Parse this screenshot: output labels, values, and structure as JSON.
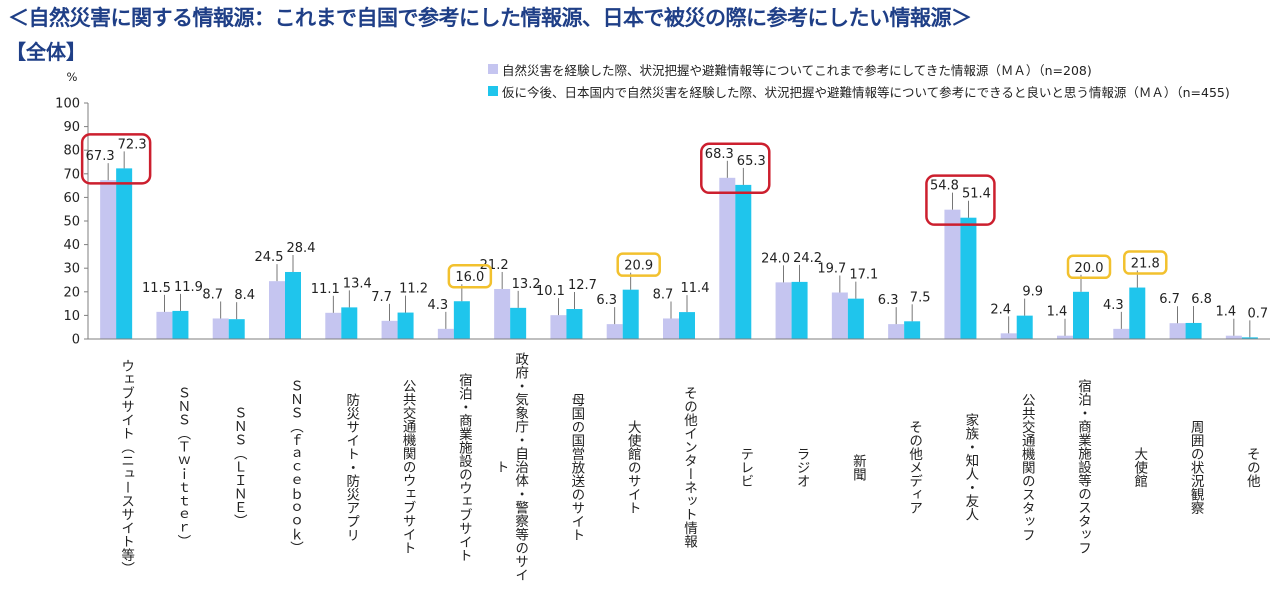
{
  "title": "＜自然災害に関する情報源：これまで自国で参考にした情報源、日本で被災の際に参考にしたい情報源＞",
  "subtitle": "【全体】",
  "chart_data": {
    "type": "bar",
    "y_unit": "%",
    "ylim": [
      0,
      100
    ],
    "yticks": [
      0,
      10,
      20,
      30,
      40,
      50,
      60,
      70,
      80,
      90,
      100
    ],
    "legend_position": "top-right",
    "categories": [
      "ウェブサイト（ニュースサイト等）",
      "ＳＮＳ（Ｔｗｉｔｔｅｒ）",
      "ＳＮＳ（ＬＩＮＥ）",
      "ＳＮＳ（ｆａｃｅｂｏｏｋ）",
      "防災サイト・防災アプリ",
      "公共交通機関のウェブサイト",
      "宿泊・商業施設のウェブサイト",
      "政府・気象庁・自治体・警察等のサイト",
      "母国の国営放送のサイト",
      "大使館のサイト",
      "その他インターネット情報",
      "テレビ",
      "ラジオ",
      "新聞",
      "その他メディア",
      "家族・知人・友人",
      "公共交通機関のスタッフ",
      "宿泊・商業施設等のスタッフ",
      "大使館",
      "周囲の状況観察",
      "その他"
    ],
    "series": [
      {
        "name": "自然災害を経験した際、状況把握や避難情報等についてこれまで参考にしてきた情報源（ＭＡ）（n=208)",
        "color": "#c5c5f0",
        "values": [
          67.3,
          11.5,
          8.7,
          24.5,
          11.1,
          7.7,
          4.3,
          21.2,
          10.1,
          6.3,
          8.7,
          68.3,
          24.0,
          19.7,
          6.3,
          54.8,
          2.4,
          1.4,
          4.3,
          6.7,
          1.4
        ],
        "labels": [
          "67.3",
          "11.5",
          "8.7",
          "24.5",
          "11.1",
          "7.7",
          "4.3",
          "21.2",
          "10.1",
          "6.3",
          "8.7",
          "68.3",
          "24.0",
          "19.7",
          "6.3",
          "54.8",
          "2.4",
          "1.4",
          "4.3",
          "6.7",
          "1.4"
        ]
      },
      {
        "name": "仮に今後、日本国内で自然災害を経験した際、状況把握や避難情報等について参考にできると良いと思う情報源（ＭＡ）（n=455)",
        "color": "#1fc5ec",
        "values": [
          72.3,
          11.9,
          8.4,
          28.4,
          13.4,
          11.2,
          16.0,
          13.2,
          12.7,
          20.9,
          11.4,
          65.3,
          24.2,
          17.1,
          7.5,
          51.4,
          9.9,
          20.0,
          21.8,
          6.8,
          0.7
        ],
        "labels": [
          "72.3",
          "11.9",
          "8.4",
          "28.4",
          "13.4",
          "11.2",
          "16.0",
          "13.2",
          "12.7",
          "20.9",
          "11.4",
          "65.3",
          "24.2",
          "17.1",
          "7.5",
          "51.4",
          "9.9",
          "20.0",
          "21.8",
          "6.8",
          "0.7"
        ]
      }
    ],
    "highlights": {
      "red_boxed_categories": [
        0,
        11,
        15
      ],
      "yellow_boxed_series2_categories": [
        6,
        9,
        17,
        18
      ],
      "red_color": "#cc1f2e",
      "yellow_color": "#f2c12e"
    }
  }
}
